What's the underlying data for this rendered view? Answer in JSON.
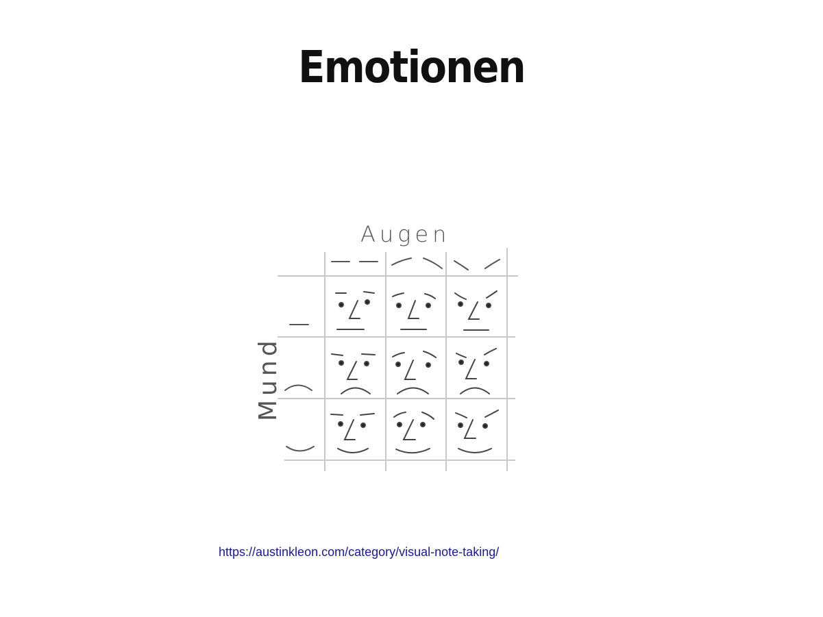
{
  "title": "Emotionen",
  "diagram": {
    "column_label": "Augen",
    "row_label": "Mund",
    "columns": [
      "neutral-eyes",
      "raised-eyes",
      "angry-eyes"
    ],
    "rows": [
      "straight-mouth",
      "frown-mouth",
      "smile-mouth"
    ]
  },
  "source_link": "https://austinkleon.com/category/visual-note-taking/"
}
